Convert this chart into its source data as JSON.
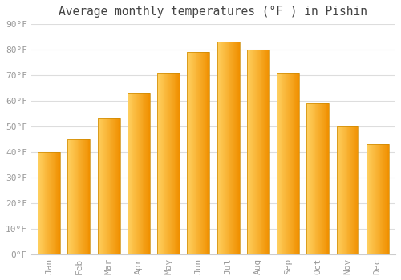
{
  "months": [
    "Jan",
    "Feb",
    "Mar",
    "Apr",
    "May",
    "Jun",
    "Jul",
    "Aug",
    "Sep",
    "Oct",
    "Nov",
    "Dec"
  ],
  "values": [
    40,
    45,
    53,
    63,
    71,
    79,
    83,
    80,
    71,
    59,
    50,
    43
  ],
  "bar_color_main": "#FFA500",
  "bar_color_light": "#FFD060",
  "bar_color_dark": "#F09000",
  "title": "Average monthly temperatures (°F ) in Pishin",
  "ylim": [
    0,
    90
  ],
  "yticks": [
    0,
    10,
    20,
    30,
    40,
    50,
    60,
    70,
    80,
    90
  ],
  "ytick_labels": [
    "0°F",
    "10°F",
    "20°F",
    "30°F",
    "40°F",
    "50°F",
    "60°F",
    "70°F",
    "80°F",
    "90°F"
  ],
  "bg_color": "#FFFFFF",
  "grid_color": "#DDDDDD",
  "title_fontsize": 10.5,
  "tick_fontsize": 8,
  "tick_color": "#999999"
}
